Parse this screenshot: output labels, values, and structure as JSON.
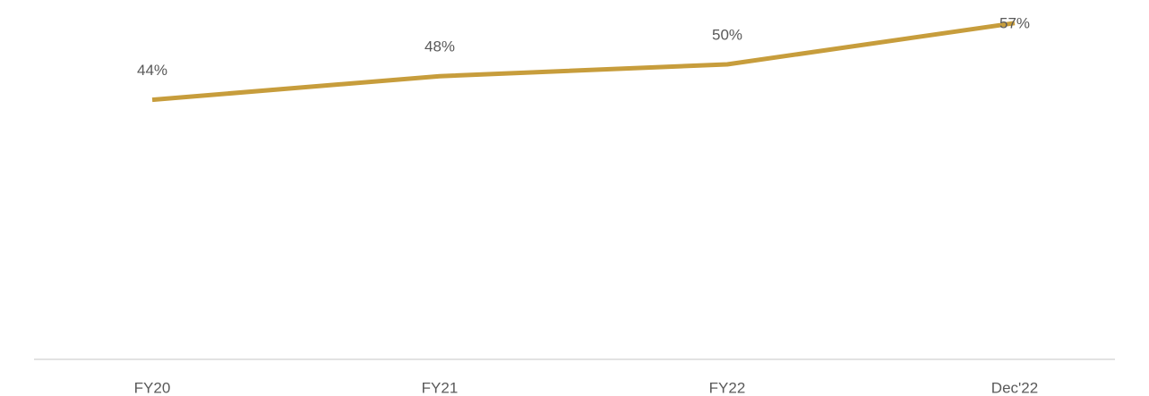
{
  "chart_data": {
    "type": "line",
    "categories": [
      "FY20",
      "FY21",
      "FY22",
      "Dec'22"
    ],
    "series": [
      {
        "color": "#c79d3c",
        "values": [
          44,
          48,
          50,
          57
        ],
        "value_labels": [
          "44%",
          "48%",
          "50%",
          "57%"
        ]
      }
    ],
    "ylim": [
      0,
      60
    ]
  }
}
